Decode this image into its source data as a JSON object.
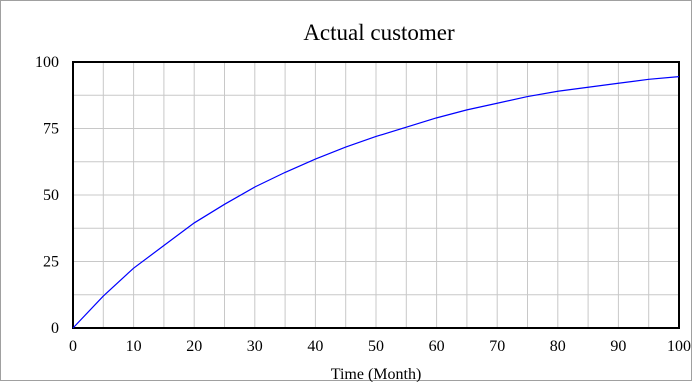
{
  "chart_data": {
    "type": "line",
    "title": "Actual customer",
    "xlabel": "Time (Month)",
    "ylabel": "",
    "xlim": [
      0,
      100
    ],
    "ylim": [
      0,
      100
    ],
    "x_ticks": [
      0,
      10,
      20,
      30,
      40,
      50,
      60,
      70,
      80,
      90,
      100
    ],
    "y_ticks": [
      0,
      25,
      50,
      75,
      100
    ],
    "x_tick_labels": [
      "0",
      "10",
      "20",
      "30",
      "40",
      "50",
      "60",
      "70",
      "80",
      "90",
      "100"
    ],
    "y_tick_labels": [
      "0",
      "25",
      "50",
      "75",
      "100"
    ],
    "grid": true,
    "legend": "none",
    "colors": {
      "series": "#0000ff",
      "grid": "#c8c8c8",
      "axes": "#000000",
      "background": "#ffffff"
    },
    "series": [
      {
        "x": [
          0,
          5,
          10,
          15,
          20,
          25,
          30,
          35,
          40,
          45,
          50,
          55,
          60,
          65,
          70,
          75,
          80,
          85,
          90,
          95,
          100
        ],
        "y": [
          0,
          12,
          22.5,
          31,
          39.5,
          46.5,
          53,
          58.5,
          63.5,
          68,
          72,
          75.5,
          79,
          82,
          84.5,
          87,
          89,
          90.5,
          92,
          93.5,
          94.5
        ]
      }
    ]
  }
}
